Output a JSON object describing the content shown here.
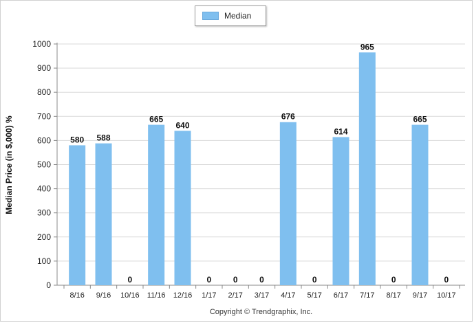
{
  "legend": {
    "label": "Median",
    "color": "#7fbfef"
  },
  "footer": {
    "copyright": "Copyright © Trendgraphix, Inc."
  },
  "chart_data": {
    "type": "bar",
    "title": "",
    "xlabel": "",
    "ylabel": "Median Price (in $,000) %",
    "ylim": [
      0,
      1000
    ],
    "yticks": [
      0,
      100,
      200,
      300,
      400,
      500,
      600,
      700,
      800,
      900,
      1000
    ],
    "grid": true,
    "legend_position": "top-center",
    "categories": [
      "8/16",
      "9/16",
      "10/16",
      "11/16",
      "12/16",
      "1/17",
      "2/17",
      "3/17",
      "4/17",
      "5/17",
      "6/17",
      "7/17",
      "8/17",
      "9/17",
      "10/17"
    ],
    "series": [
      {
        "name": "Median",
        "color": "#7fbfef",
        "values": [
          580,
          588,
          0,
          665,
          640,
          0,
          0,
          0,
          676,
          0,
          614,
          965,
          0,
          665,
          0
        ]
      }
    ]
  }
}
